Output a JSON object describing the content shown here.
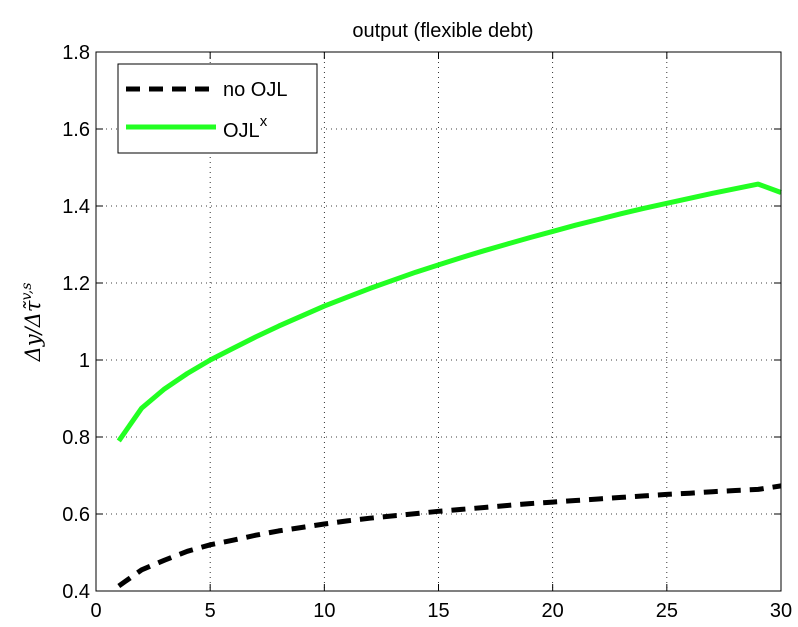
{
  "chart_data": {
    "type": "line",
    "title": "output (flexible debt)",
    "xlabel": "",
    "ylabel": "Δy/Δτ̃v,s",
    "ylabel_parts": {
      "main": "Δy/Δτ̃",
      "sup": "v,s"
    },
    "xlim": [
      0,
      30
    ],
    "ylim": [
      0.4,
      1.8
    ],
    "xticks": [
      0,
      5,
      10,
      15,
      20,
      25,
      30
    ],
    "yticks": [
      0.4,
      0.6,
      0.8,
      1,
      1.2,
      1.4,
      1.6,
      1.8
    ],
    "grid": true,
    "legend_position": "top-left",
    "x": [
      1,
      2,
      3,
      4,
      5,
      6,
      7,
      8,
      9,
      10,
      11,
      12,
      13,
      14,
      15,
      16,
      17,
      18,
      19,
      20,
      21,
      22,
      23,
      24,
      25,
      26,
      27,
      28,
      29,
      30
    ],
    "series": [
      {
        "name": "no OJL",
        "legend_main": "no OJL",
        "legend_sup": "",
        "color": "#000000",
        "dash": "dashed",
        "values": [
          0.413,
          0.455,
          0.48,
          0.503,
          0.52,
          0.532,
          0.545,
          0.556,
          0.565,
          0.574,
          0.582,
          0.589,
          0.595,
          0.601,
          0.607,
          0.612,
          0.617,
          0.622,
          0.627,
          0.631,
          0.635,
          0.639,
          0.643,
          0.647,
          0.651,
          0.654,
          0.658,
          0.661,
          0.664,
          0.673
        ]
      },
      {
        "name": "OJLx",
        "legend_main": "OJL",
        "legend_sup": "x",
        "color": "#22ff22",
        "dash": "solid",
        "values": [
          0.79,
          0.875,
          0.925,
          0.965,
          1.0,
          1.03,
          1.06,
          1.088,
          1.114,
          1.14,
          1.163,
          1.186,
          1.207,
          1.228,
          1.247,
          1.266,
          1.284,
          1.301,
          1.318,
          1.334,
          1.35,
          1.365,
          1.38,
          1.394,
          1.407,
          1.42,
          1.433,
          1.445,
          1.457,
          1.435
        ]
      }
    ]
  }
}
